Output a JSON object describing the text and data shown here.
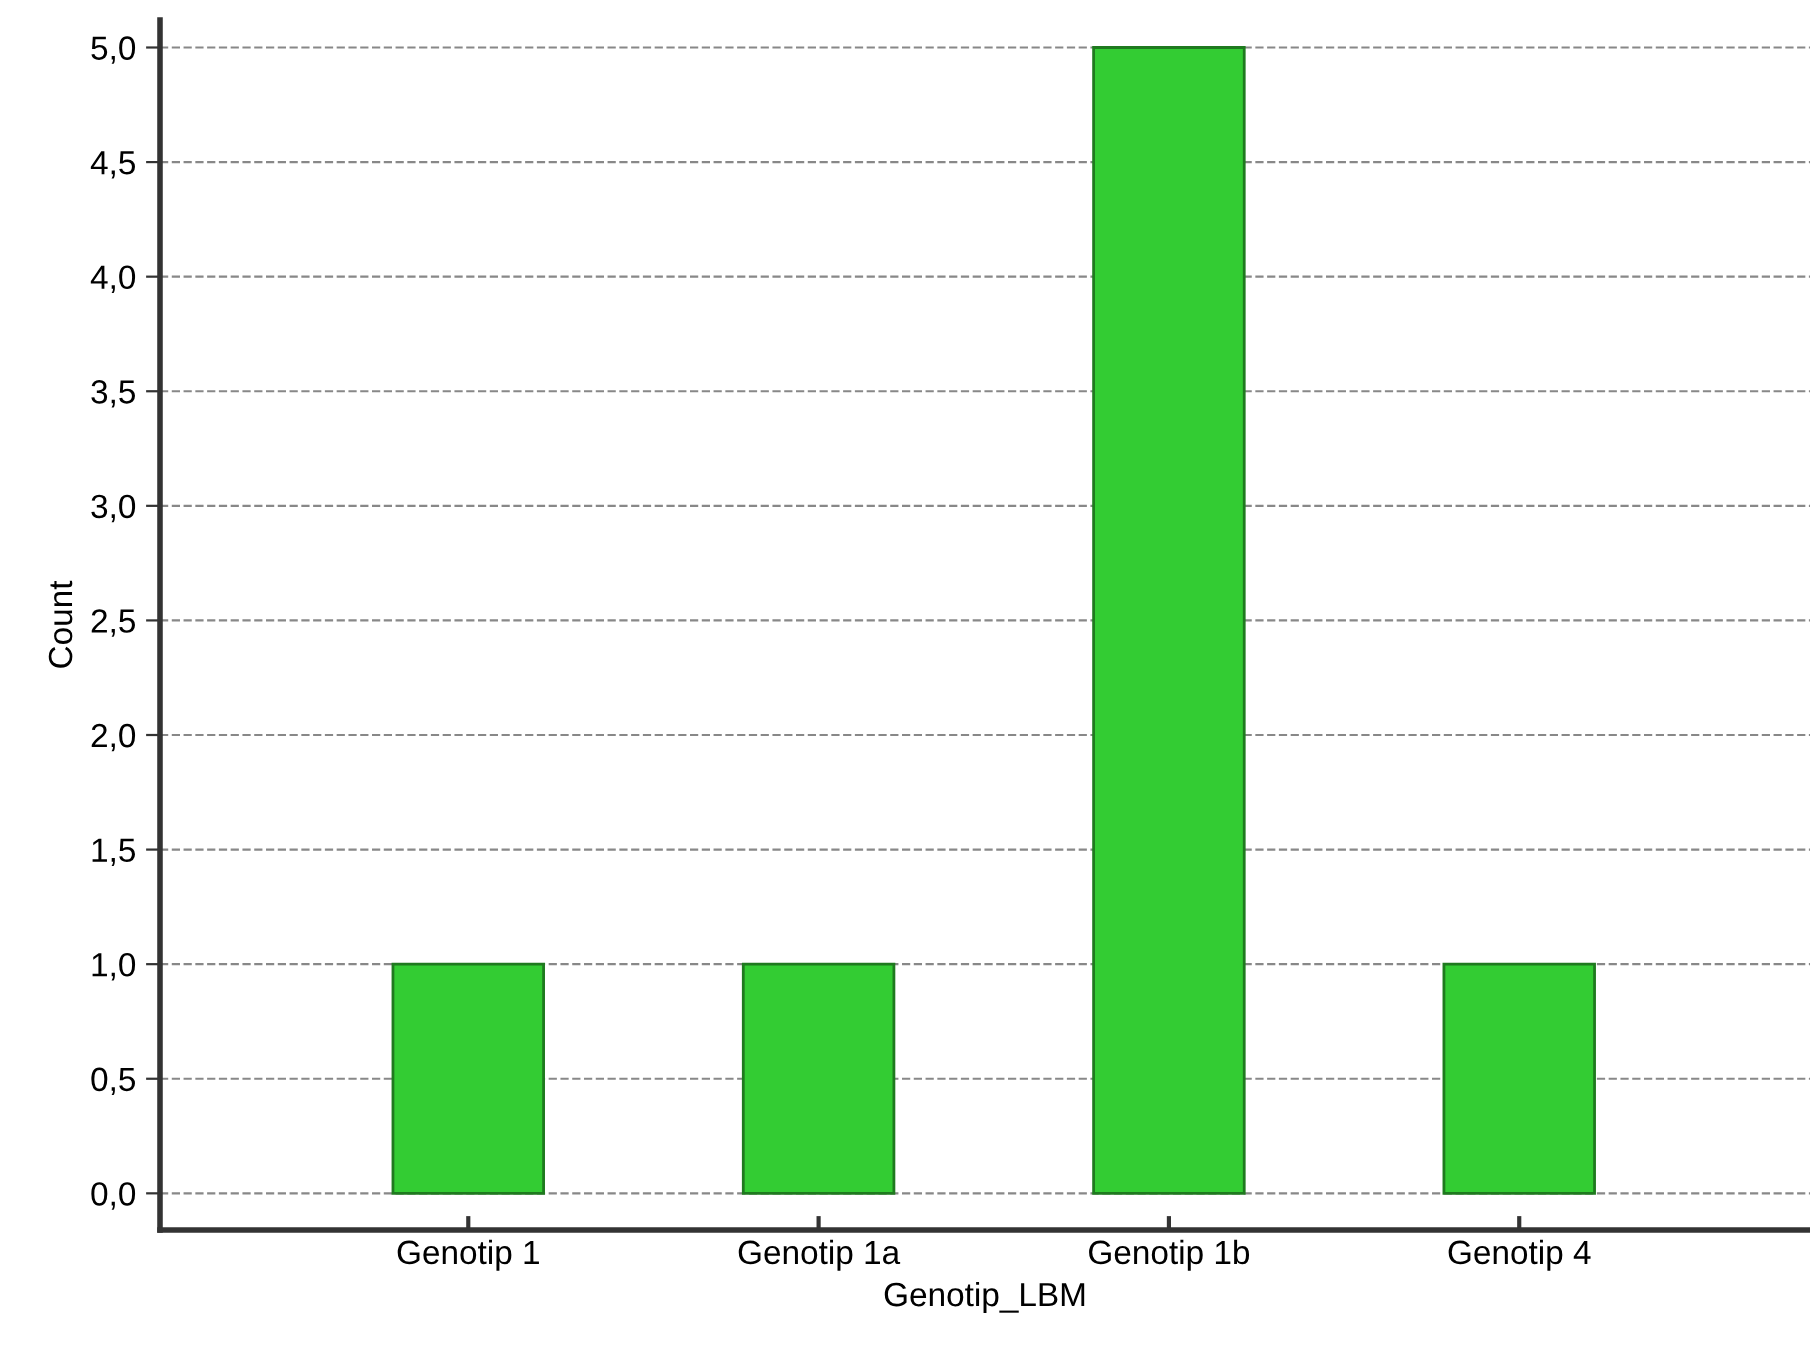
{
  "chart_data": {
    "type": "bar",
    "xlabel": "Genotip_LBM",
    "ylabel": "Count",
    "categories": [
      "Genotip 1",
      "Genotip 1a",
      "Genotip 1b",
      "Genotip 4"
    ],
    "values": [
      1,
      1,
      5,
      1
    ],
    "color": "#33cc33",
    "ylim": [
      -0.16,
      5.12
    ],
    "yticks": [
      {
        "value": 0,
        "label": "0,0"
      },
      {
        "value": 0.5,
        "label": "0,5"
      },
      {
        "value": 1,
        "label": "1,0"
      },
      {
        "value": 1.5,
        "label": "1,5"
      },
      {
        "value": 2,
        "label": "2,0"
      },
      {
        "value": 2.5,
        "label": "2,5"
      },
      {
        "value": 3,
        "label": "3,0"
      },
      {
        "value": 3.5,
        "label": "3,5"
      },
      {
        "value": 4,
        "label": "4,0"
      },
      {
        "value": 4.5,
        "label": "4,5"
      },
      {
        "value": 5,
        "label": "5,0"
      }
    ],
    "grid": "y"
  }
}
